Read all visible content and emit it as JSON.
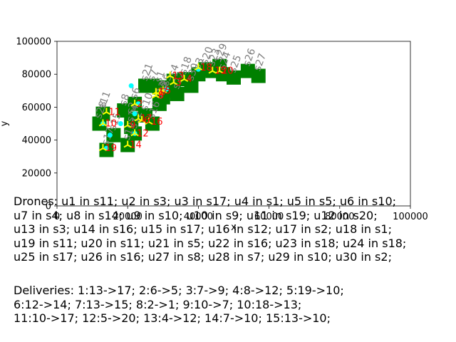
{
  "chart_data": {
    "type": "scatter",
    "title": "",
    "xlabel": "x",
    "ylabel": "y",
    "xlim": [
      0,
      100000
    ],
    "ylim": [
      0,
      100000
    ],
    "x_ticks": [
      "0",
      "20000",
      "40000",
      "60000",
      "80000",
      "100000"
    ],
    "y_ticks": [
      "0",
      "20000",
      "40000",
      "60000",
      "80000",
      "100000"
    ],
    "grid": false,
    "station_color": "#008000",
    "station_label_color": "#808080",
    "drone_color": "#ffff00",
    "drone_label_color": "#ff0000",
    "delivery_point_color": "#00ffff",
    "stations": [
      {
        "label": "s1",
        "x": 29000,
        "y": 72000
      },
      {
        "label": "s2",
        "x": 21000,
        "y": 53000
      },
      {
        "label": "s3",
        "x": 40000,
        "y": 80000
      },
      {
        "label": "s4",
        "x": 33000,
        "y": 76000
      },
      {
        "label": "s5",
        "x": 31000,
        "y": 70000
      },
      {
        "label": "s6",
        "x": 22000,
        "y": 62000
      },
      {
        "label": "s7",
        "x": 27000,
        "y": 73000
      },
      {
        "label": "s8",
        "x": 19000,
        "y": 58000
      },
      {
        "label": "s9",
        "x": 30000,
        "y": 66000
      },
      {
        "label": "s10",
        "x": 25000,
        "y": 55000
      },
      {
        "label": "s11",
        "x": 13000,
        "y": 56000
      },
      {
        "label": "s12",
        "x": 22000,
        "y": 44000
      },
      {
        "label": "s13",
        "x": 29000,
        "y": 62000
      },
      {
        "label": "s14",
        "x": 21000,
        "y": 48000
      },
      {
        "label": "s15",
        "x": 16000,
        "y": 43000
      },
      {
        "label": "s16",
        "x": 27000,
        "y": 50000
      },
      {
        "label": "s17",
        "x": 14000,
        "y": 34000
      },
      {
        "label": "s18",
        "x": 36000,
        "y": 77000
      },
      {
        "label": "s19",
        "x": 20000,
        "y": 37000
      },
      {
        "label": "s20",
        "x": 42000,
        "y": 83000
      },
      {
        "label": "s21",
        "x": 25000,
        "y": 73000
      },
      {
        "label": "s22",
        "x": 34000,
        "y": 68000
      },
      {
        "label": "s23",
        "x": 44000,
        "y": 82000
      },
      {
        "label": "s24",
        "x": 47000,
        "y": 80000
      },
      {
        "label": "s25",
        "x": 50000,
        "y": 78000
      },
      {
        "label": "s26",
        "x": 54000,
        "y": 82000
      },
      {
        "label": "s27",
        "x": 57000,
        "y": 79000
      },
      {
        "label": "s28",
        "x": 12000,
        "y": 50000
      },
      {
        "label": "s29",
        "x": 46000,
        "y": 85000
      },
      {
        "label": "s30",
        "x": 38000,
        "y": 73000
      }
    ],
    "drones": [
      {
        "label": "1",
        "x": 28000,
        "y": 69000
      },
      {
        "label": "2",
        "x": 22000,
        "y": 62000
      },
      {
        "label": "3",
        "x": 33000,
        "y": 75000
      },
      {
        "label": "4",
        "x": 36000,
        "y": 77000
      },
      {
        "label": "5",
        "x": 30000,
        "y": 70000
      },
      {
        "label": "6",
        "x": 24000,
        "y": 52000
      },
      {
        "label": "7",
        "x": 29000,
        "y": 69000
      },
      {
        "label": "8",
        "x": 28000,
        "y": 67000
      },
      {
        "label": "9",
        "x": 20000,
        "y": 49000
      },
      {
        "label": "10",
        "x": 13000,
        "y": 50000
      },
      {
        "label": "11",
        "x": 14000,
        "y": 57000
      },
      {
        "label": "12",
        "x": 22000,
        "y": 44000
      },
      {
        "label": "13",
        "x": 32000,
        "y": 79000
      },
      {
        "label": "14",
        "x": 20000,
        "y": 37000
      },
      {
        "label": "15",
        "x": 44000,
        "y": 82000
      },
      {
        "label": "16",
        "x": 26000,
        "y": 51000
      },
      {
        "label": "17",
        "x": 23000,
        "y": 53000
      },
      {
        "label": "18",
        "x": 40000,
        "y": 84000
      },
      {
        "label": "19",
        "x": 13000,
        "y": 35000
      },
      {
        "label": "20",
        "x": 46000,
        "y": 82000
      }
    ],
    "delivery_points": [
      {
        "x": 21000,
        "y": 73000
      },
      {
        "x": 23000,
        "y": 62000
      },
      {
        "x": 22000,
        "y": 56000
      },
      {
        "x": 18000,
        "y": 50000
      },
      {
        "x": 15000,
        "y": 43000
      },
      {
        "x": 22000,
        "y": 44000
      },
      {
        "x": 14000,
        "y": 35000
      },
      {
        "x": 13000,
        "y": 50000
      },
      {
        "x": 31000,
        "y": 71000
      },
      {
        "x": 40000,
        "y": 83000
      }
    ]
  },
  "captions": {
    "drones": "Drones: u1 in s11; u2 in s3; u3 in s17; u4 in s1; u5 in s5; u6 in s10;\nu7 in s4; u8 in s14; u9 in s10; u10 in s9; u11 in s19; u12 in s20;\nu13 in s3; u14 in s16; u15 in s17; u16 in s12; u17 in s2; u18 in s1;\nu19 in s11; u20 in s11; u21 in s5; u22 in s16; u23 in s18; u24 in s18;\nu25 in s17; u26 in s16; u27 in s8; u28 in s7; u29 in s10; u30 in s2;",
    "deliveries": "Deliveries: 1:13->17; 2:6->5; 3:7->9; 4:8->12; 5:19->10;\n6:12->14; 7:13->15; 8:2->1; 9:10->7; 10:18->13;\n11:10->17; 12:5->20; 13:4->12; 14:7->10; 15:13->10;"
  }
}
